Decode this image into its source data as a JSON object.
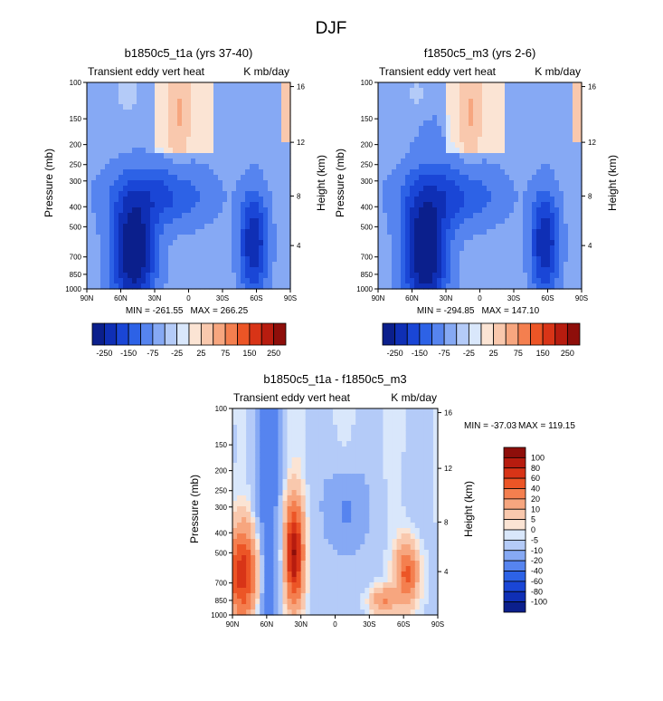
{
  "figure": {
    "title": "DJF"
  },
  "colors": {
    "negative": [
      "#0b1f8c",
      "#0f2fb5",
      "#1a46d6",
      "#2d62e6",
      "#5684ef",
      "#86a9f4",
      "#b4cbf8",
      "#d9e7fb"
    ],
    "positive": [
      "#fbe4d4",
      "#f9c8ad",
      "#f7a67f",
      "#f47f4f",
      "#ec5526",
      "#d83417",
      "#b71c0f",
      "#8e0e0a"
    ]
  },
  "chart_data": [
    {
      "type": "heatmap",
      "title": "b1850c5_t1a (yrs 37-40)",
      "left_label": "Transient eddy vert heat",
      "right_label": "K mb/day",
      "xlabel": "",
      "ylabel": "Pressure (mb)",
      "ylabel_right": "Height (km)",
      "x_ticks": [
        "90N",
        "60N",
        "30N",
        "0",
        "30S",
        "60S",
        "90S"
      ],
      "y_ticks": [
        "100",
        "150",
        "200",
        "250",
        "300",
        "400",
        "500",
        "700",
        "850",
        "1000"
      ],
      "y2_ticks": [
        "16",
        "12",
        "8",
        "4"
      ],
      "ylim": [
        1000,
        100
      ],
      "min_label": "MIN = -261.55",
      "max_label": "MAX = 266.25",
      "colorbar_labels": [
        "-250",
        "-150",
        "-75",
        "-25",
        "25",
        "75",
        "150",
        "250"
      ]
    },
    {
      "type": "heatmap",
      "title": "f1850c5_m3 (yrs 2-6)",
      "left_label": "Transient eddy vert heat",
      "right_label": "K mb/day",
      "xlabel": "",
      "ylabel": "Pressure (mb)",
      "ylabel_right": "Height (km)",
      "x_ticks": [
        "90N",
        "60N",
        "30N",
        "0",
        "30S",
        "60S",
        "90S"
      ],
      "y_ticks": [
        "100",
        "150",
        "200",
        "250",
        "300",
        "400",
        "500",
        "700",
        "850",
        "1000"
      ],
      "y2_ticks": [
        "16",
        "12",
        "8",
        "4"
      ],
      "ylim": [
        1000,
        100
      ],
      "min_label": "MIN = -294.85",
      "max_label": "MAX = 147.10",
      "colorbar_labels": [
        "-250",
        "-150",
        "-75",
        "-25",
        "25",
        "75",
        "150",
        "250"
      ]
    },
    {
      "type": "heatmap",
      "title": "b1850c5_t1a - f1850c5_m3",
      "left_label": "Transient eddy vert heat",
      "right_label": "K mb/day",
      "xlabel": "",
      "ylabel": "Pressure (mb)",
      "ylabel_right": "Height (km)",
      "x_ticks": [
        "90N",
        "60N",
        "30N",
        "0",
        "30S",
        "60S",
        "90S"
      ],
      "y_ticks": [
        "100",
        "150",
        "200",
        "250",
        "300",
        "400",
        "500",
        "700",
        "850",
        "1000"
      ],
      "y2_ticks": [
        "16",
        "12",
        "8",
        "4"
      ],
      "ylim": [
        1000,
        100
      ],
      "min_label": "MIN = -37.03",
      "max_label": "MAX = 119.15",
      "colorbar_labels": [
        "100",
        "80",
        "60",
        "40",
        "20",
        "10",
        "5",
        "0",
        "-5",
        "-10",
        "-20",
        "-40",
        "-60",
        "-80",
        "-100"
      ]
    }
  ]
}
